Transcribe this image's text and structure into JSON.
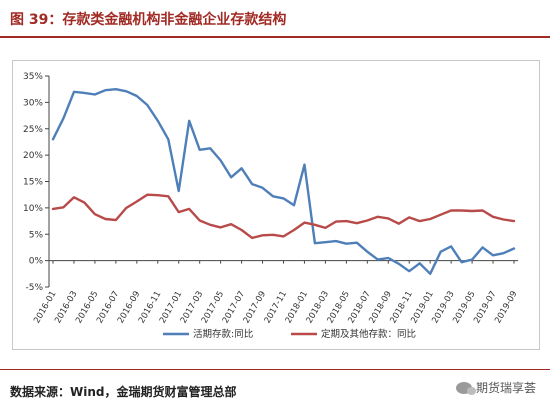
{
  "header": {
    "title": "图 39：存款类金融机构非金融企业存款结构"
  },
  "footer": {
    "source": "数据来源：Wind，金瑞期货财富管理总部",
    "watermark": "期货瑞享荟"
  },
  "colors": {
    "accent": "#a12a24",
    "series_demand": "#4f7fb8",
    "series_time": "#b84a4a"
  },
  "chart_data": {
    "type": "line",
    "title": "",
    "xlabel": "",
    "ylabel": "",
    "ylim": [
      -5,
      35
    ],
    "yticks": [
      "-5%",
      "0%",
      "5%",
      "10%",
      "15%",
      "20%",
      "25%",
      "30%",
      "35%"
    ],
    "ytick_values": [
      -5,
      0,
      5,
      10,
      15,
      20,
      25,
      30,
      35
    ],
    "grid": false,
    "legend_position": "bottom",
    "x": [
      "2016-01",
      "2016-02",
      "2016-03",
      "2016-04",
      "2016-05",
      "2016-06",
      "2016-07",
      "2016-08",
      "2016-09",
      "2016-10",
      "2016-11",
      "2016-12",
      "2017-01",
      "2017-02",
      "2017-03",
      "2017-04",
      "2017-05",
      "2017-06",
      "2017-07",
      "2017-08",
      "2017-09",
      "2017-10",
      "2017-11",
      "2017-12",
      "2018-01",
      "2018-02",
      "2018-03",
      "2018-04",
      "2018-05",
      "2018-06",
      "2018-07",
      "2018-08",
      "2018-09",
      "2018-10",
      "2018-11",
      "2018-12",
      "2019-01",
      "2019-02",
      "2019-03",
      "2019-04",
      "2019-05",
      "2019-06",
      "2019-07",
      "2019-08",
      "2019-09"
    ],
    "xticks": [
      "2016-01",
      "2016-03",
      "2016-05",
      "2016-07",
      "2016-09",
      "2016-11",
      "2017-01",
      "2017-03",
      "2017-05",
      "2017-07",
      "2017-09",
      "2017-11",
      "2018-01",
      "2018-03",
      "2018-05",
      "2018-07",
      "2018-09",
      "2018-11",
      "2019-01",
      "2019-03",
      "2019-05",
      "2019-07",
      "2019-09"
    ],
    "series": [
      {
        "name": "活期存款:同比",
        "values": [
          23.0,
          27.0,
          32.0,
          31.8,
          31.5,
          32.3,
          32.5,
          32.1,
          31.2,
          29.5,
          26.5,
          23.0,
          13.2,
          26.5,
          21.0,
          21.3,
          19.0,
          15.8,
          17.5,
          14.5,
          13.8,
          12.2,
          11.8,
          10.5,
          18.2,
          3.3,
          3.5,
          3.7,
          3.2,
          3.4,
          1.7,
          0.2,
          0.5,
          -0.6,
          -2.0,
          -0.5,
          -2.5,
          1.7,
          2.7,
          -0.3,
          0.2,
          2.5,
          1.0,
          1.4,
          2.3
        ]
      },
      {
        "name": "定期及其他存款：同比",
        "values": [
          9.8,
          10.1,
          12.0,
          11.0,
          8.8,
          7.9,
          7.7,
          10.0,
          11.2,
          12.5,
          12.4,
          12.2,
          9.2,
          9.8,
          7.6,
          6.8,
          6.3,
          6.9,
          5.8,
          4.3,
          4.8,
          4.9,
          4.6,
          5.8,
          7.2,
          6.8,
          6.2,
          7.4,
          7.5,
          7.1,
          7.6,
          8.3,
          8.0,
          7.0,
          8.2,
          7.5,
          7.9,
          8.7,
          9.5,
          9.5,
          9.4,
          9.5,
          8.3,
          7.8,
          7.5
        ]
      }
    ]
  }
}
